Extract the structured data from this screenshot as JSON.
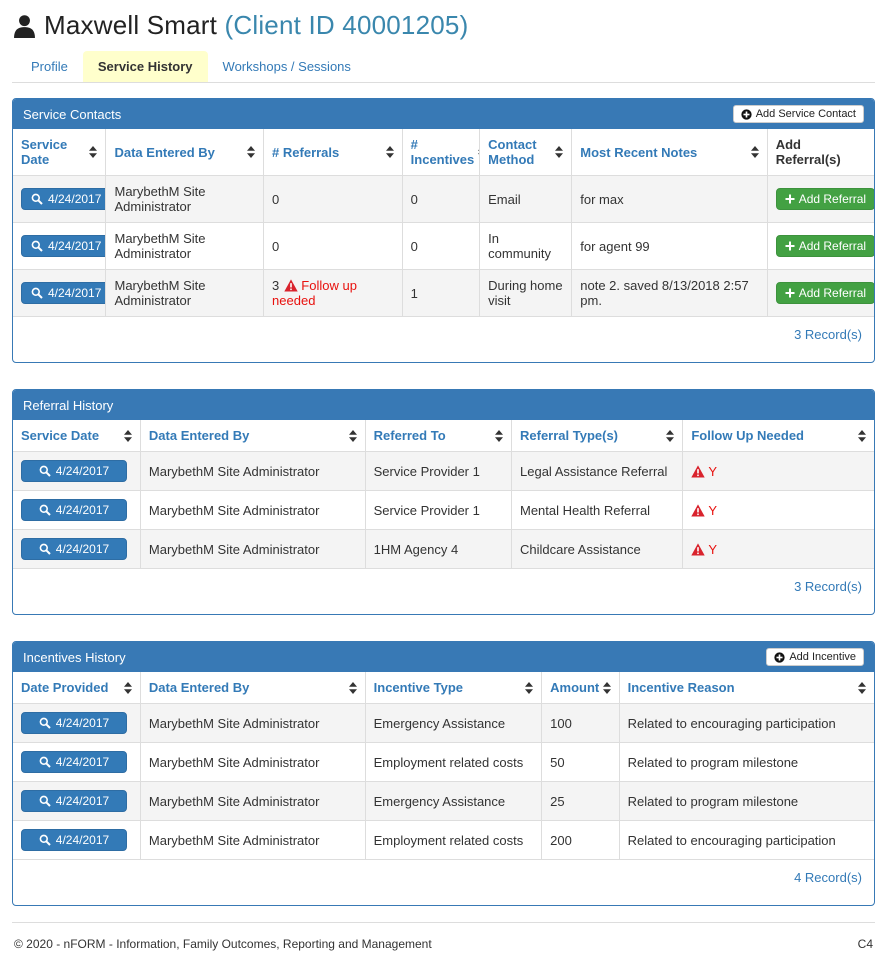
{
  "header": {
    "title": "Maxwell Smart",
    "client_id": "(Client ID 40001205)"
  },
  "tabs": [
    {
      "label": "Profile",
      "active": false
    },
    {
      "label": "Service History",
      "active": true
    },
    {
      "label": "Workshops / Sessions",
      "active": false
    }
  ],
  "colors": {
    "panel_blue": "#3879b5",
    "button_blue": "#337ab7",
    "green": "#43a143",
    "warning_red": "#d9232d",
    "alert_text_red": "#e8110e",
    "active_tab_yellow": "#ffffcc",
    "link_blue": "#337ab7"
  },
  "icons": {
    "person": "person-bust",
    "search": "magnifier-glass",
    "add_circle": "plus-in-circle",
    "plus": "plus",
    "warning": "warning-triangle-exclamation",
    "sort": "up-down-arrows"
  },
  "service_contacts": {
    "title": "Service Contacts",
    "add_button_label": "Add Service Contact",
    "columns": [
      "Service Date",
      "Data Entered By",
      "# Referrals",
      "# Incentives",
      "Contact Method",
      "Most Recent Notes",
      "Add Referral(s)"
    ],
    "rows": [
      {
        "service_date": "4/24/2017",
        "entered_by": "MarybethM Site Administrator",
        "referrals": "0",
        "referrals_warning": "",
        "incentives": "0",
        "contact_method": "Email",
        "notes": "for max",
        "add_referral_label": "Add Referral"
      },
      {
        "service_date": "4/24/2017",
        "entered_by": "MarybethM Site Administrator",
        "referrals": "0",
        "referrals_warning": "",
        "incentives": "0",
        "contact_method": "In community",
        "notes": "for agent 99",
        "add_referral_label": "Add Referral"
      },
      {
        "service_date": "4/24/2017",
        "entered_by": "MarybethM Site Administrator",
        "referrals": "3",
        "referrals_warning": "Follow up needed",
        "incentives": "1",
        "contact_method": "During home visit",
        "notes": "note 2. saved 8/13/2018 2:57 pm.",
        "add_referral_label": "Add Referral"
      }
    ],
    "record_count": "3 Record(s)"
  },
  "referral_history": {
    "title": "Referral History",
    "columns": [
      "Service Date",
      "Data Entered By",
      "Referred To",
      "Referral Type(s)",
      "Follow Up Needed"
    ],
    "rows": [
      {
        "service_date": "4/24/2017",
        "entered_by": "MarybethM Site Administrator",
        "referred_to": "Service Provider 1",
        "referral_type": "Legal Assistance Referral",
        "follow_up": "Y"
      },
      {
        "service_date": "4/24/2017",
        "entered_by": "MarybethM Site Administrator",
        "referred_to": "Service Provider 1",
        "referral_type": "Mental Health Referral",
        "follow_up": "Y"
      },
      {
        "service_date": "4/24/2017",
        "entered_by": "MarybethM Site Administrator",
        "referred_to": "1HM Agency 4",
        "referral_type": "Childcare Assistance",
        "follow_up": "Y"
      }
    ],
    "record_count": "3 Record(s)"
  },
  "incentives_history": {
    "title": "Incentives History",
    "add_button_label": "Add Incentive",
    "columns": [
      "Date Provided",
      "Data Entered By",
      "Incentive Type",
      "Amount",
      "Incentive Reason"
    ],
    "rows": [
      {
        "date_provided": "4/24/2017",
        "entered_by": "MarybethM Site Administrator",
        "incentive_type": "Emergency Assistance",
        "amount": "100",
        "reason": "Related to encouraging participation"
      },
      {
        "date_provided": "4/24/2017",
        "entered_by": "MarybethM Site Administrator",
        "incentive_type": "Employment related costs",
        "amount": "50",
        "reason": "Related to program milestone"
      },
      {
        "date_provided": "4/24/2017",
        "entered_by": "MarybethM Site Administrator",
        "incentive_type": "Emergency Assistance",
        "amount": "25",
        "reason": "Related to program milestone"
      },
      {
        "date_provided": "4/24/2017",
        "entered_by": "MarybethM Site Administrator",
        "incentive_type": "Employment related costs",
        "amount": "200",
        "reason": "Related to encouraging participation"
      }
    ],
    "record_count": "4 Record(s)"
  },
  "footer": {
    "copyright": "© 2020 - nFORM - Information, Family Outcomes, Reporting and Management",
    "page_code": "C4"
  }
}
